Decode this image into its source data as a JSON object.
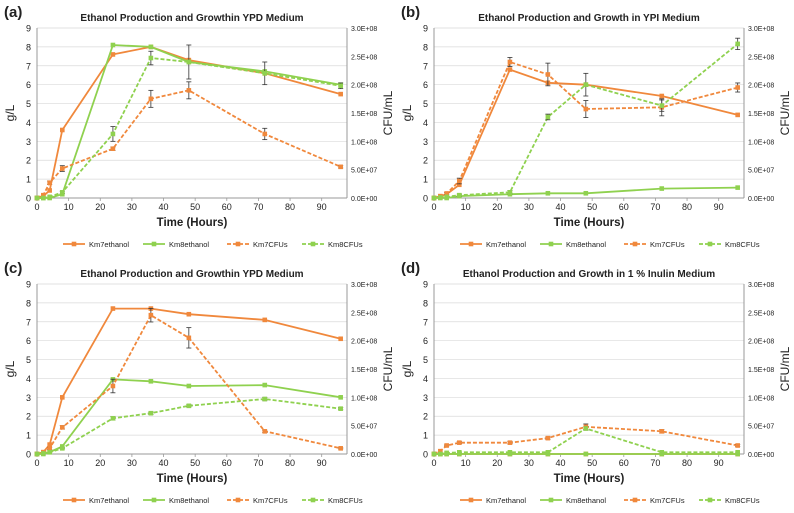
{
  "colors": {
    "km7": "#f0883c",
    "km8": "#8fd14f",
    "axis": "#999999",
    "grid": "#d9d9d9",
    "text": "#222222"
  },
  "chart_data": [
    {
      "type": "line",
      "panel_label": "(a)",
      "title": "Ethanol Production and Growthin YPD Medium",
      "xlabel": "Time (Hours)",
      "ylabel": "g/L",
      "y2label": "CFU/mL",
      "xlim": [
        0,
        98
      ],
      "ylim": [
        0,
        9
      ],
      "y2lim": [
        0,
        300000000
      ],
      "xticks": [
        0,
        10,
        20,
        30,
        40,
        50,
        60,
        70,
        80,
        90
      ],
      "yticks": [
        0,
        1,
        2,
        3,
        4,
        5,
        6,
        7,
        8,
        9
      ],
      "y2ticks": [
        "0.0E+00",
        "5.0E+07",
        "1.0E+08",
        "1.5E+08",
        "2.0E+08",
        "2.5E+08",
        "3.0E+08"
      ],
      "legend": [
        "Km7ethanol",
        "Km8ethanol",
        "Km7CFUs",
        "Km8CFUs"
      ],
      "series": [
        {
          "name": "Km7ethanol",
          "axis": "left",
          "color": "km7",
          "dashed": false,
          "x": [
            0,
            2,
            4,
            8,
            24,
            36,
            48,
            72,
            96
          ],
          "values": [
            0,
            0.1,
            0.4,
            3.6,
            7.6,
            8.0,
            7.3,
            6.6,
            5.5
          ]
        },
        {
          "name": "Km8ethanol",
          "axis": "left",
          "color": "km8",
          "dashed": false,
          "x": [
            0,
            2,
            4,
            8,
            24,
            36,
            48,
            72,
            96
          ],
          "values": [
            0,
            0,
            0,
            0.2,
            8.1,
            8.0,
            7.2,
            6.7,
            6.0
          ]
        },
        {
          "name": "Km7CFUs",
          "axis": "right",
          "color": "km7",
          "dashed": true,
          "x": [
            0,
            2,
            4,
            8,
            24,
            36,
            48,
            72,
            96
          ],
          "values": [
            0,
            5000000,
            27000000,
            52000000,
            87000000,
            175000000,
            190000000,
            113000000,
            55000000
          ],
          "errors": [
            0,
            0,
            3000000,
            5000000,
            3000000,
            15000000,
            15000000,
            10000000,
            2000000
          ]
        },
        {
          "name": "Km8CFUs",
          "axis": "right",
          "color": "km8",
          "dashed": true,
          "x": [
            0,
            2,
            4,
            8,
            24,
            36,
            48,
            72,
            96
          ],
          "values": [
            0,
            0,
            2000000,
            10000000,
            113000000,
            247000000,
            240000000,
            220000000,
            198000000
          ],
          "errors": [
            0,
            0,
            0,
            2000000,
            13000000,
            12000000,
            30000000,
            20000000,
            5000000
          ]
        }
      ]
    },
    {
      "type": "line",
      "panel_label": "(b)",
      "title": "Ethanol Production and Growth in YPI Medium",
      "xlabel": "Time (Hours)",
      "ylabel": "g/L",
      "y2label": "CFU/mL",
      "xlim": [
        0,
        98
      ],
      "ylim": [
        0,
        9
      ],
      "y2lim": [
        0,
        300000000
      ],
      "xticks": [
        0,
        10,
        20,
        30,
        40,
        50,
        60,
        70,
        80,
        90
      ],
      "yticks": [
        0,
        1,
        2,
        3,
        4,
        5,
        6,
        7,
        8,
        9
      ],
      "y2ticks": [
        "0.0E+00",
        "5.0E+07",
        "1.0E+08",
        "1.5E+08",
        "2.0E+08",
        "2.5E+08",
        "3.0E+08"
      ],
      "legend": [
        "Km7ethanol",
        "Km8ethanol",
        "Km7CFUs",
        "Km8CFUs"
      ],
      "series": [
        {
          "name": "Km7ethanol",
          "axis": "left",
          "color": "km7",
          "dashed": false,
          "x": [
            0,
            2,
            4,
            8,
            24,
            36,
            48,
            72,
            96
          ],
          "values": [
            0,
            0.1,
            0.2,
            0.7,
            6.8,
            6.1,
            6.0,
            5.4,
            4.4
          ]
        },
        {
          "name": "Km8ethanol",
          "axis": "left",
          "color": "km8",
          "dashed": false,
          "x": [
            0,
            2,
            4,
            8,
            24,
            36,
            48,
            72,
            96
          ],
          "values": [
            0,
            0,
            0,
            0.1,
            0.2,
            0.25,
            0.25,
            0.5,
            0.55
          ]
        },
        {
          "name": "Km7CFUs",
          "axis": "right",
          "color": "km7",
          "dashed": true,
          "x": [
            0,
            2,
            4,
            8,
            24,
            36,
            48,
            72,
            96
          ],
          "values": [
            0,
            3000000,
            8000000,
            30000000,
            240000000,
            218000000,
            157000000,
            160000000,
            195000000
          ],
          "errors": [
            0,
            0,
            2000000,
            5000000,
            8000000,
            20000000,
            15000000,
            15000000,
            8000000
          ]
        },
        {
          "name": "Km8CFUs",
          "axis": "right",
          "color": "km8",
          "dashed": true,
          "x": [
            0,
            2,
            4,
            8,
            24,
            36,
            48,
            72,
            96
          ],
          "values": [
            0,
            1000000,
            2000000,
            5000000,
            10000000,
            143000000,
            200000000,
            163000000,
            272000000
          ],
          "errors": [
            0,
            0,
            0,
            2000000,
            3000000,
            5000000,
            20000000,
            10000000,
            10000000
          ]
        }
      ]
    },
    {
      "type": "line",
      "panel_label": "(c)",
      "title": "Ethanol Production and Growthin YPD Medium",
      "xlabel": "Time (Hours)",
      "ylabel": "g/L",
      "y2label": "CFU/mL",
      "xlim": [
        0,
        98
      ],
      "ylim": [
        0,
        9
      ],
      "y2lim": [
        0,
        300000000
      ],
      "xticks": [
        0,
        10,
        20,
        30,
        40,
        50,
        60,
        70,
        80,
        90
      ],
      "yticks": [
        0,
        1,
        2,
        3,
        4,
        5,
        6,
        7,
        8,
        9
      ],
      "y2ticks": [
        "0.0E+00",
        "5.0E+07",
        "1.0E+08",
        "1.5E+08",
        "2.0E+08",
        "2.5E+08",
        "3.0E+08"
      ],
      "legend": [
        "Km7ethanol",
        "Km8ethanol",
        "Km7CFUs",
        "Km8CFUs"
      ],
      "series": [
        {
          "name": "Km7ethanol",
          "axis": "left",
          "color": "km7",
          "dashed": false,
          "x": [
            0,
            2,
            4,
            8,
            24,
            36,
            48,
            72,
            96
          ],
          "values": [
            0,
            0.1,
            0.5,
            3.0,
            7.7,
            7.7,
            7.4,
            7.1,
            6.1
          ]
        },
        {
          "name": "Km8ethanol",
          "axis": "left",
          "color": "km8",
          "dashed": false,
          "x": [
            0,
            2,
            4,
            8,
            24,
            36,
            48,
            72,
            96
          ],
          "values": [
            0,
            0,
            0.1,
            0.4,
            3.95,
            3.85,
            3.6,
            3.65,
            3.0
          ]
        },
        {
          "name": "Km7CFUs",
          "axis": "right",
          "color": "km7",
          "dashed": true,
          "x": [
            0,
            2,
            4,
            8,
            24,
            36,
            48,
            72,
            96
          ],
          "values": [
            0,
            3000000,
            10000000,
            47000000,
            120000000,
            245000000,
            205000000,
            40000000,
            10000000
          ],
          "errors": [
            0,
            0,
            2000000,
            3000000,
            12000000,
            12000000,
            18000000,
            2000000,
            1000000
          ]
        },
        {
          "name": "Km8CFUs",
          "axis": "right",
          "color": "km8",
          "dashed": true,
          "x": [
            0,
            2,
            4,
            8,
            24,
            36,
            48,
            72,
            96
          ],
          "values": [
            0,
            1000000,
            3000000,
            10000000,
            63000000,
            72000000,
            85000000,
            97000000,
            80000000
          ],
          "errors": [
            0,
            0,
            0,
            1000000,
            3000000,
            2000000,
            2000000,
            3000000,
            2000000
          ]
        }
      ]
    },
    {
      "type": "line",
      "panel_label": "(d)",
      "title": "Ethanol Production and Growth in 1 % Inulin Medium",
      "xlabel": "Time (Hours)",
      "ylabel": "g/L",
      "y2label": "CFU/mL",
      "xlim": [
        0,
        98
      ],
      "ylim": [
        0,
        9
      ],
      "y2lim": [
        0,
        300000000
      ],
      "xticks": [
        0,
        10,
        20,
        30,
        40,
        50,
        60,
        70,
        80,
        90
      ],
      "yticks": [
        0,
        1,
        2,
        3,
        4,
        5,
        6,
        7,
        8,
        9
      ],
      "y2ticks": [
        "0.0E+00",
        "5.0E+07",
        "1.0E+08",
        "1.5E+08",
        "2.0E+08",
        "2.5E+08",
        "3.0E+08"
      ],
      "legend": [
        "Km7ethanol",
        "Km8ethanol",
        "Km7CFUs",
        "Km8CFUs"
      ],
      "series": [
        {
          "name": "Km7ethanol",
          "axis": "left",
          "color": "km7",
          "dashed": false,
          "x": [
            0,
            2,
            4,
            8,
            24,
            36,
            48,
            72,
            96
          ],
          "values": [
            0,
            0,
            0,
            0,
            0,
            0,
            0,
            0,
            0
          ]
        },
        {
          "name": "Km8ethanol",
          "axis": "left",
          "color": "km8",
          "dashed": false,
          "x": [
            0,
            2,
            4,
            8,
            24,
            36,
            48,
            72,
            96
          ],
          "values": [
            0,
            0,
            0,
            0,
            0,
            0,
            0,
            0,
            0
          ]
        },
        {
          "name": "Km7CFUs",
          "axis": "right",
          "color": "km7",
          "dashed": true,
          "x": [
            0,
            2,
            4,
            8,
            24,
            36,
            48,
            72,
            96
          ],
          "values": [
            0,
            5000000,
            15000000,
            20000000,
            20000000,
            28000000,
            48000000,
            40000000,
            15000000
          ],
          "errors": [
            0,
            0,
            1000000,
            2000000,
            2000000,
            2000000,
            5000000,
            3000000,
            2000000
          ]
        },
        {
          "name": "Km8CFUs",
          "axis": "right",
          "color": "km8",
          "dashed": true,
          "x": [
            0,
            2,
            4,
            8,
            24,
            36,
            48,
            72,
            96
          ],
          "values": [
            0,
            0,
            2000000,
            3000000,
            3000000,
            3000000,
            45000000,
            3000000,
            3000000
          ],
          "errors": [
            0,
            0,
            0,
            0,
            0,
            0,
            3000000,
            0,
            0
          ]
        }
      ]
    }
  ]
}
